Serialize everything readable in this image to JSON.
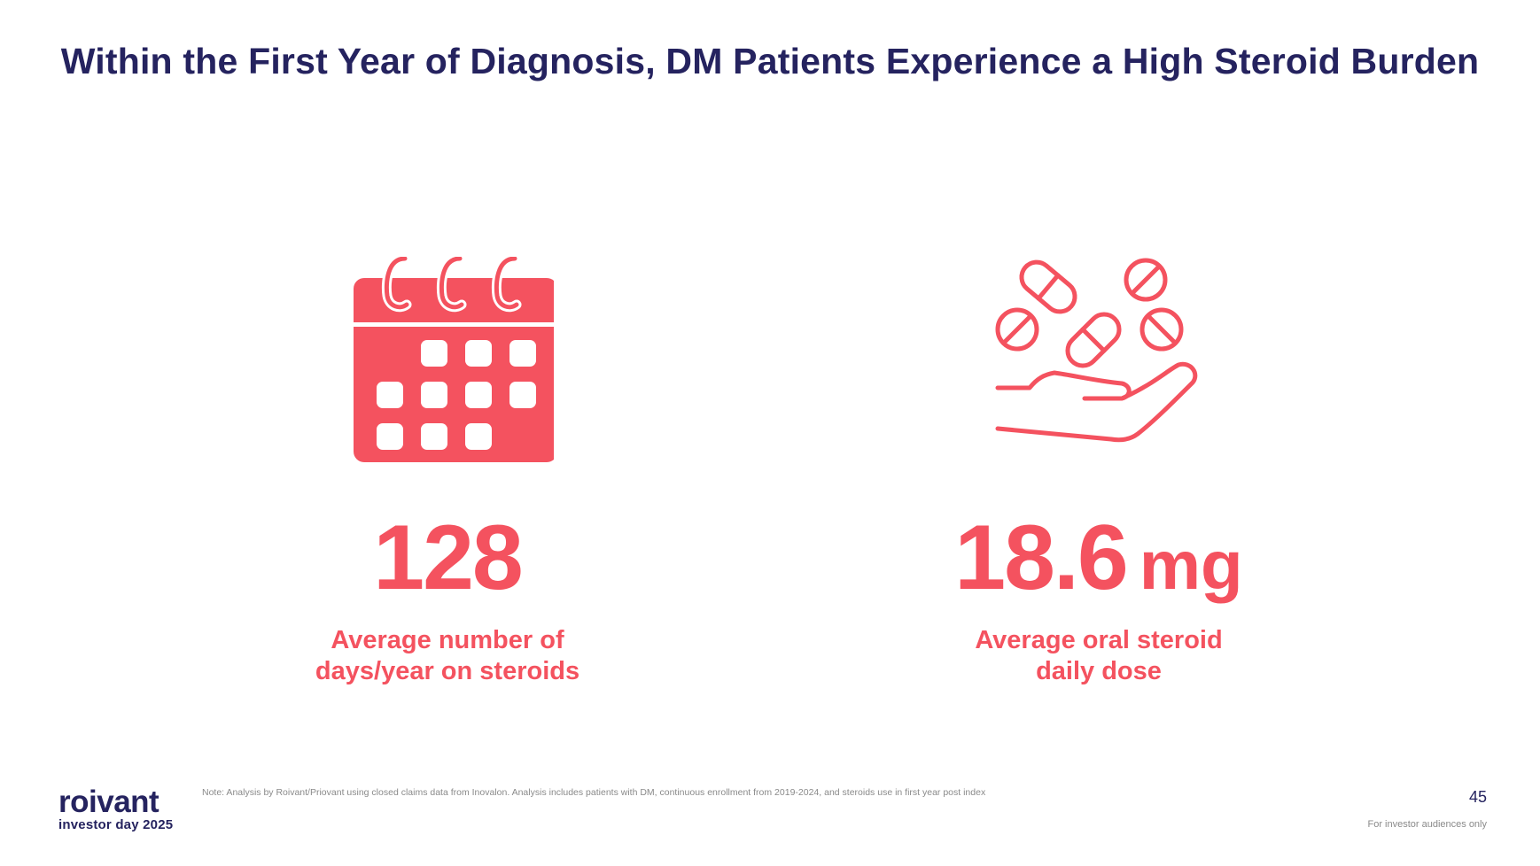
{
  "slide": {
    "title": "Within the First Year of Diagnosis, DM Patients Experience a High Steroid Burden"
  },
  "stats": [
    {
      "icon": "calendar-icon",
      "value": "128",
      "unit": "",
      "label": "Average number of\ndays/year on steroids"
    },
    {
      "icon": "pills-in-hand-icon",
      "value": "18.6",
      "unit": "mg",
      "label": "Average oral steroid\ndaily dose"
    }
  ],
  "footer": {
    "logo_word": "roivant",
    "logo_sub": "investor day 2025",
    "note": "Note: Analysis by Roivant/Priovant using closed claims data from Inovalon. Analysis includes patients with DM, continuous enrollment from 2019-2024, and steroids use in first year post index",
    "page_number": "45",
    "audience": "For investor audiences only"
  },
  "colors": {
    "accent": "#f4525f",
    "navy": "#25235f",
    "muted": "#8a8a8a",
    "background": "#ffffff"
  }
}
